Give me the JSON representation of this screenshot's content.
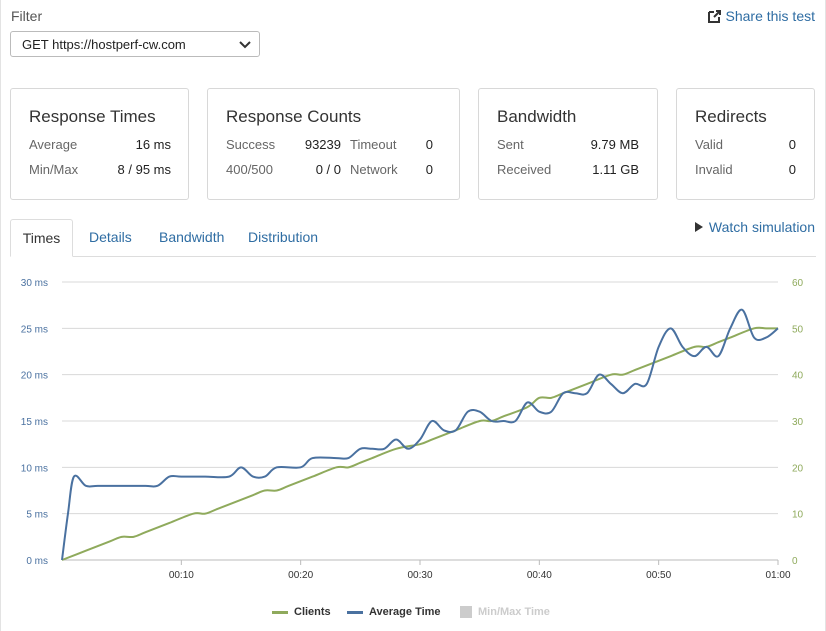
{
  "filter": {
    "label": "Filter",
    "selected": "GET https://hostperf-cw.com",
    "share_label": "Share this test"
  },
  "cards": {
    "response_times": {
      "title": "Response Times",
      "average_label": "Average",
      "average_value": "16 ms",
      "minmax_label": "Min/Max",
      "minmax_value": "8 / 95 ms"
    },
    "response_counts": {
      "title": "Response Counts",
      "success_label": "Success",
      "success_value": "93239",
      "timeout_label": "Timeout",
      "timeout_value": "0",
      "c400_label": "400/500",
      "c400_value": "0 / 0",
      "network_label": "Network",
      "network_value": "0"
    },
    "bandwidth": {
      "title": "Bandwidth",
      "sent_label": "Sent",
      "sent_value": "9.79 MB",
      "received_label": "Received",
      "received_value": "1.11 GB"
    },
    "redirects": {
      "title": "Redirects",
      "valid_label": "Valid",
      "valid_value": "0",
      "invalid_label": "Invalid",
      "invalid_value": "0"
    }
  },
  "tabs": [
    "Times",
    "Details",
    "Bandwidth",
    "Distribution"
  ],
  "watch_label": "Watch simulation",
  "colors": {
    "clients": "#8faa5c",
    "average": "#4a71a0",
    "minmax": "#cccccc",
    "link": "#2f6da3"
  },
  "chart_data": {
    "type": "line",
    "x_ticks": [
      "00:10",
      "00:20",
      "00:30",
      "00:40",
      "00:50",
      "01:00"
    ],
    "y_left_ticks": [
      "0 ms",
      "5 ms",
      "10 ms",
      "15 ms",
      "20 ms",
      "25 ms",
      "30 ms"
    ],
    "y_right_ticks": [
      "0",
      "10",
      "20",
      "30",
      "40",
      "50",
      "60"
    ],
    "xlim": [
      0,
      60
    ],
    "ylim_left": [
      0,
      30
    ],
    "ylim_right": [
      0,
      60
    ],
    "grid": true,
    "legend_position": "bottom-center",
    "series": [
      {
        "name": "Clients",
        "axis": "right",
        "x": [
          0,
          2,
          4,
          5,
          6,
          7,
          9,
          11,
          12,
          13,
          14,
          16,
          17,
          18,
          19,
          21,
          23,
          24,
          25,
          26,
          28,
          30,
          31,
          32,
          33,
          35,
          36,
          37,
          39,
          40,
          41,
          42,
          44,
          46,
          47,
          48,
          49,
          51,
          53,
          54,
          55,
          56,
          58,
          59,
          60
        ],
        "y": [
          0,
          2,
          4,
          5,
          5,
          6,
          8,
          10,
          10,
          11,
          12,
          14,
          15,
          15,
          16,
          18,
          20,
          20,
          21,
          22,
          24,
          25,
          26,
          27,
          28,
          30,
          30,
          31,
          33,
          35,
          35,
          36,
          38,
          40,
          40,
          41,
          42,
          44,
          46,
          46,
          47,
          48,
          50,
          50,
          50
        ]
      },
      {
        "name": "Average Time",
        "axis": "left",
        "x": [
          0,
          0.5,
          1,
          2,
          3,
          5,
          7,
          8,
          9,
          10,
          12,
          14,
          15,
          16,
          17,
          18,
          20,
          21,
          23,
          24,
          25,
          26,
          27,
          28,
          29,
          30,
          31,
          32,
          33,
          34,
          35,
          36,
          37,
          38,
          39,
          40,
          41,
          42,
          43,
          44,
          45,
          46,
          47,
          48,
          49,
          50,
          51,
          52,
          53,
          54,
          55,
          56,
          57,
          58,
          59,
          60
        ],
        "y": [
          0,
          5,
          9,
          8,
          8,
          8,
          8,
          8,
          9,
          9,
          9,
          9,
          10,
          9,
          9,
          10,
          10,
          11,
          11,
          11,
          12,
          12,
          12,
          13,
          12,
          13,
          15,
          14,
          14,
          16,
          16,
          15,
          15,
          15,
          17,
          16,
          16,
          18,
          18,
          18,
          20,
          19,
          18,
          19,
          19,
          23,
          25,
          23,
          22,
          23,
          22,
          25,
          27,
          24,
          24,
          25
        ]
      }
    ],
    "legend": [
      "Clients",
      "Average Time",
      "Min/Max Time"
    ]
  }
}
